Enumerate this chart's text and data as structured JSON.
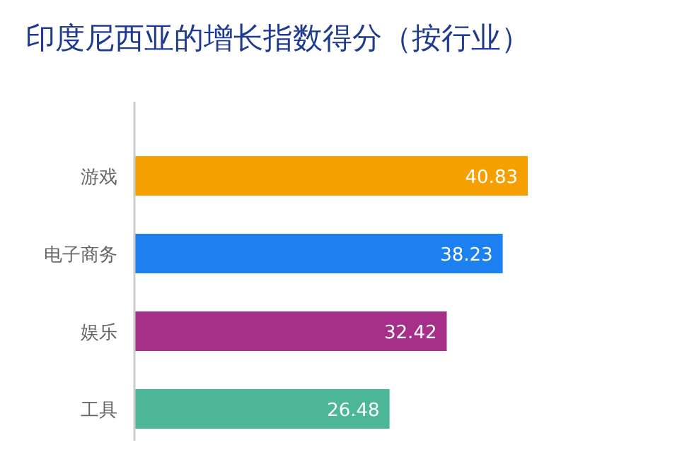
{
  "chart_data": {
    "type": "bar",
    "orientation": "horizontal",
    "title": "印度尼西亚的增长指数得分（按行业）",
    "categories": [
      "游戏",
      "电子商务",
      "娱乐",
      "工具"
    ],
    "values": [
      40.83,
      38.23,
      32.42,
      26.48
    ],
    "colors": [
      "#f59f00",
      "#1c80f0",
      "#a63089",
      "#4bb797"
    ],
    "data_labels": true
  }
}
